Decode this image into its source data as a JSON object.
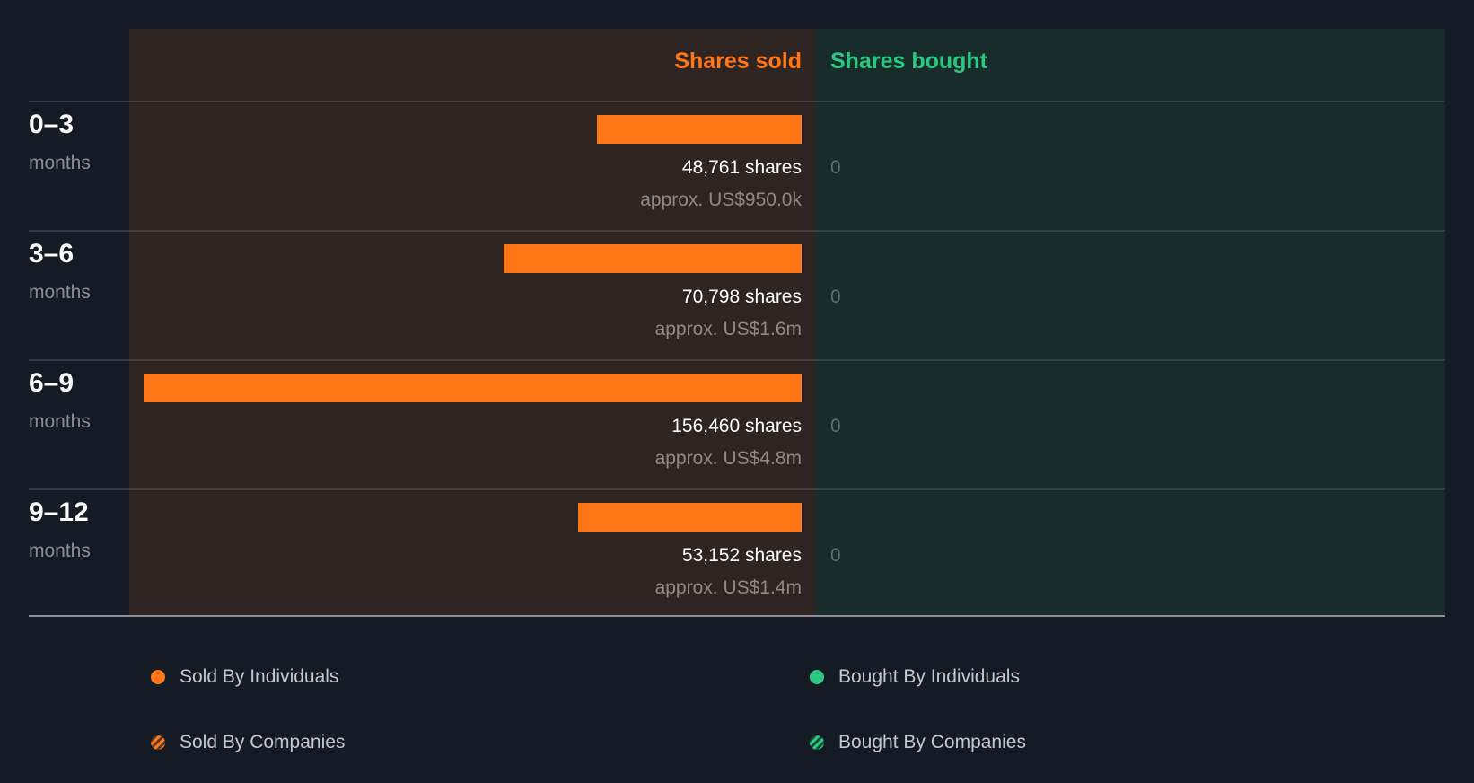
{
  "header": {
    "sold_label": "Shares sold",
    "bought_label": "Shares bought"
  },
  "colors": {
    "sold": "#ff7617",
    "bought": "#2bc880",
    "background": "#151b24",
    "sold_panel": "#2e2422",
    "bought_panel": "#182c2c"
  },
  "rows": [
    {
      "period": "0–3",
      "unit": "months",
      "shares_label": "48,761 shares",
      "approx": "approx. US$950.0k",
      "bought": "0",
      "shares": 48761
    },
    {
      "period": "3–6",
      "unit": "months",
      "shares_label": "70,798 shares",
      "approx": "approx. US$1.6m",
      "bought": "0",
      "shares": 70798
    },
    {
      "period": "6–9",
      "unit": "months",
      "shares_label": "156,460 shares",
      "approx": "approx. US$4.8m",
      "bought": "0",
      "shares": 156460
    },
    {
      "period": "9–12",
      "unit": "months",
      "shares_label": "53,152 shares",
      "approx": "approx. US$1.4m",
      "bought": "0",
      "shares": 53152
    }
  ],
  "legend": {
    "sold_individuals": "Sold By Individuals",
    "bought_individuals": "Bought By Individuals",
    "sold_companies": "Sold By Companies",
    "bought_companies": "Bought By Companies"
  },
  "chart_data": {
    "type": "bar",
    "orientation": "horizontal",
    "title": "",
    "categories": [
      "0–3 months",
      "3–6 months",
      "6–9 months",
      "9–12 months"
    ],
    "series": [
      {
        "name": "Shares sold",
        "color": "#ff7617",
        "values": [
          48761,
          70798,
          156460,
          53152
        ],
        "approx_value_usd": [
          "US$950.0k",
          "US$1.6m",
          "US$4.8m",
          "US$1.4m"
        ]
      },
      {
        "name": "Shares bought",
        "color": "#2bc880",
        "values": [
          0,
          0,
          0,
          0
        ]
      }
    ],
    "legend": [
      "Sold By Individuals",
      "Bought By Individuals",
      "Sold By Companies",
      "Bought By Companies"
    ],
    "legend_position": "bottom",
    "grid": false
  }
}
